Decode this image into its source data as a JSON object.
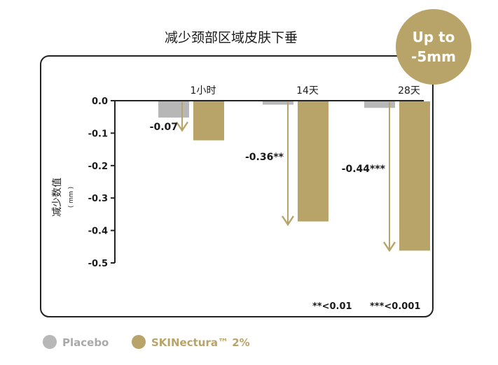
{
  "title": "减少颈部区域皮肤下垂",
  "badge": {
    "line1": "Up to",
    "line2": "-5mm"
  },
  "colors": {
    "placebo": "#b7b7b7",
    "active": "#b8a468",
    "arrow": "#b8a468",
    "badge_bg": "#b8a468",
    "badge_text": "#ffffff",
    "frame": "#222222",
    "text": "#1a1a1a",
    "legend_placebo_text": "#a9a9a9",
    "legend_active_text": "#b8a468"
  },
  "chart_data": {
    "type": "bar",
    "categories": [
      "1小时",
      "14天",
      "28天"
    ],
    "series": [
      {
        "name": "Placebo",
        "values": [
          -0.05,
          -0.01,
          -0.02
        ]
      },
      {
        "name": "SKINectura™ 2%",
        "values": [
          -0.12,
          -0.37,
          -0.46
        ]
      }
    ],
    "differences": [
      {
        "category": "1小时",
        "value": -0.07,
        "label": "-0.07"
      },
      {
        "category": "14天",
        "value": -0.36,
        "label": "-0.36**"
      },
      {
        "category": "28天",
        "value": -0.44,
        "label": "-0.44***"
      }
    ],
    "ylabel": "减少数值",
    "ylabel_unit": "( mm )",
    "ylim": [
      -0.5,
      0.0
    ],
    "yticks": [
      0.0,
      -0.1,
      -0.2,
      -0.3,
      -0.4,
      -0.5
    ],
    "ytick_labels": [
      "0.0",
      "-0.1",
      "-0.2",
      "-0.3",
      "-0.4",
      "-0.5"
    ],
    "significance_notes": [
      "**<0.01",
      "***<0.001"
    ],
    "legend": [
      "Placebo",
      "SKINectura™ 2%"
    ],
    "legend_position": "bottom-left",
    "grid": false
  }
}
